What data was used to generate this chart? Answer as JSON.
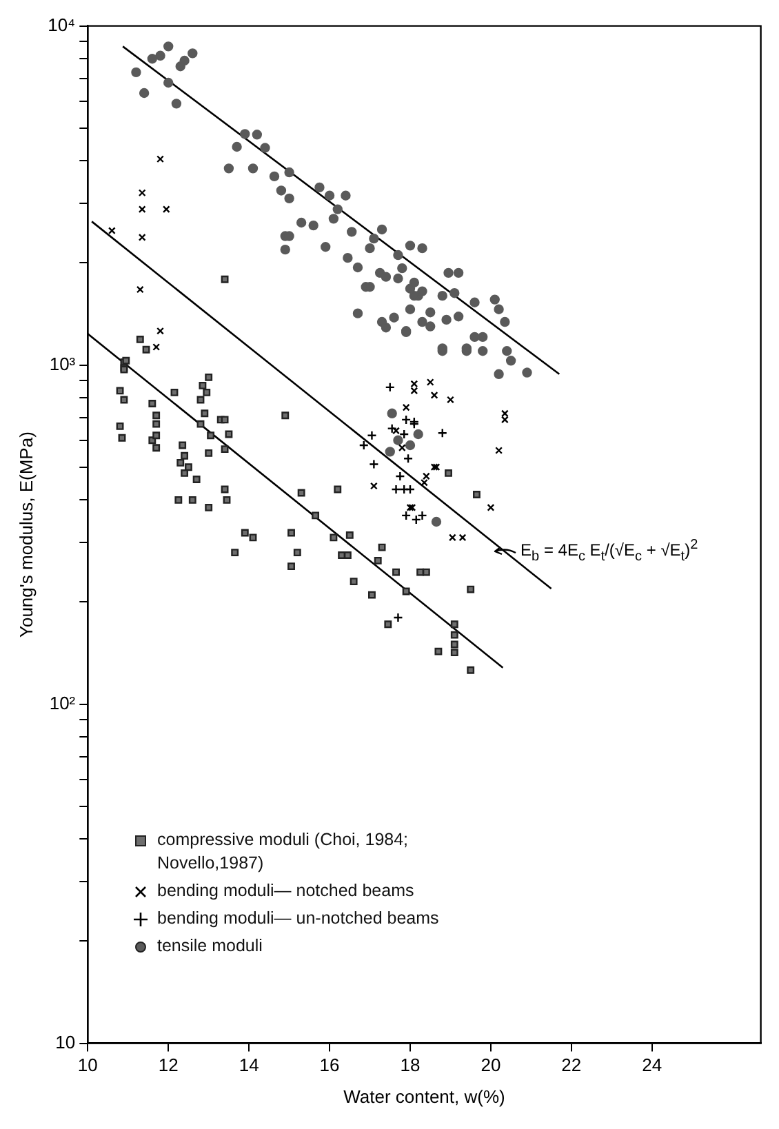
{
  "chart_data": {
    "type": "scatter",
    "xlabel": "Water content, w(%)",
    "ylabel": "Young's modulus, E(MPa)",
    "log": "y",
    "grid": false,
    "legend": "bottom left",
    "xlim": [
      10,
      26.7
    ],
    "xticks": [
      10,
      12,
      14,
      16,
      18,
      20,
      22,
      24
    ],
    "ylim": [
      10,
      10000
    ],
    "yticks": [
      {
        "value": 10,
        "label": "10"
      },
      {
        "value": 20,
        "label": null
      },
      {
        "value": 30,
        "label": null
      },
      {
        "value": 40,
        "label": null
      },
      {
        "value": 50,
        "label": null
      },
      {
        "value": 60,
        "label": null
      },
      {
        "value": 70,
        "label": null
      },
      {
        "value": 80,
        "label": null
      },
      {
        "value": 90,
        "label": null
      },
      {
        "value": 100,
        "label": "10²"
      },
      {
        "value": 200,
        "label": null
      },
      {
        "value": 300,
        "label": null
      },
      {
        "value": 400,
        "label": null
      },
      {
        "value": 500,
        "label": null
      },
      {
        "value": 600,
        "label": null
      },
      {
        "value": 700,
        "label": null
      },
      {
        "value": 800,
        "label": null
      },
      {
        "value": 900,
        "label": null
      },
      {
        "value": 1000,
        "label": "10³"
      },
      {
        "value": 2000,
        "label": null
      },
      {
        "value": 3000,
        "label": null
      },
      {
        "value": 4000,
        "label": null
      },
      {
        "value": 5000,
        "label": null
      },
      {
        "value": 6000,
        "label": null
      },
      {
        "value": 7000,
        "label": null
      },
      {
        "value": 8000,
        "label": null
      },
      {
        "value": 9000,
        "label": null
      },
      {
        "value": 10000,
        "label": "10⁴"
      }
    ],
    "annotations": [
      "E$_{b}$ = 4E$_{c}$ E$_{t}$/(√E$_{c}$ + √E$_{t}$)$^{2}$"
    ],
    "series": [
      {
        "name": "compressive moduli (Choi, 1984; Novello,1987)",
        "type": "scatter",
        "marker": "square",
        "color": "#6e6e6e",
        "x": [
          13.4,
          11.3,
          11.45,
          10.9,
          10.9,
          10.95,
          10.9,
          10.8,
          10.9,
          10.8,
          10.85,
          11.6,
          11.7,
          11.7,
          11.6,
          11.7,
          11.7,
          12.15,
          12.85,
          13.0,
          12.95,
          12.8,
          12.9,
          12.8,
          12.35,
          12.4,
          12.3,
          12.5,
          12.4,
          12.7,
          13.05,
          13.0,
          13.3,
          13.4,
          13.5,
          13.4,
          13.4,
          13.45,
          12.25,
          12.6,
          13.0,
          13.9,
          14.1,
          13.65,
          14.9,
          15.3,
          16.2,
          15.65,
          15.05,
          15.2,
          15.05,
          16.1,
          16.5,
          16.3,
          16.45,
          16.6,
          17.05,
          17.3,
          17.2,
          17.65,
          18.25,
          18.4,
          17.9,
          17.45,
          18.7,
          19.1,
          19.1,
          19.1,
          19.1,
          19.5,
          19.5,
          18.95,
          19.65
        ],
        "values": [
          1790,
          1190,
          1110,
          1020,
          980,
          1030,
          970,
          840,
          790,
          660,
          610,
          770,
          710,
          670,
          600,
          620,
          570,
          830,
          870,
          920,
          830,
          790,
          720,
          670,
          580,
          540,
          515,
          500,
          480,
          460,
          620,
          550,
          690,
          690,
          625,
          565,
          430,
          400,
          400,
          400,
          380,
          320,
          310,
          280,
          710,
          420,
          430,
          360,
          320,
          280,
          255,
          310,
          315,
          275,
          275,
          230,
          210,
          290,
          265,
          245,
          245,
          245,
          215,
          172,
          143,
          172,
          160,
          150,
          142,
          218,
          126,
          480,
          415
        ]
      },
      {
        "name": "bending moduli— notched beams",
        "type": "scatter",
        "marker": "x",
        "color": "#000000",
        "x": [
          11.8,
          11.35,
          11.35,
          11.95,
          10.6,
          11.35,
          11.3,
          11.8,
          11.7,
          18.1,
          18.1,
          18.5,
          18.6,
          19.0,
          17.9,
          17.65,
          17.8,
          17.1,
          18.05,
          18.4,
          18.35,
          18.6,
          19.05,
          19.3,
          20.35,
          20.35,
          20.2,
          20.0,
          18.65,
          18.0
        ],
        "values": [
          4050,
          3220,
          2880,
          2880,
          2490,
          2380,
          1670,
          1260,
          1130,
          880,
          840,
          890,
          815,
          790,
          750,
          640,
          570,
          440,
          380,
          470,
          450,
          500,
          310,
          310,
          720,
          690,
          560,
          380,
          500,
          380
        ]
      },
      {
        "name": "bending moduli— un-notched beams",
        "type": "scatter",
        "marker": "cross",
        "color": "#000000",
        "x": [
          17.5,
          17.05,
          16.85,
          17.1,
          17.55,
          17.85,
          18.1,
          18.8,
          17.95,
          17.75,
          17.65,
          17.85,
          18.0,
          17.9,
          18.15,
          18.3,
          17.7,
          18.1,
          17.9
        ],
        "values": [
          860,
          620,
          580,
          510,
          650,
          625,
          670,
          630,
          530,
          470,
          430,
          430,
          430,
          360,
          350,
          360,
          180,
          680,
          690
        ]
      },
      {
        "name": "tensile moduli",
        "type": "scatter",
        "marker": "circle",
        "color": "#5a5a5a",
        "x": [
          11.8,
          12.2,
          11.2,
          12.3,
          11.4,
          11.6,
          12.0,
          12.4,
          12.6,
          12.0,
          13.5,
          13.9,
          14.2,
          14.4,
          13.7,
          14.1,
          14.63,
          15.0,
          14.8,
          15.0,
          15.75,
          16.0,
          16.1,
          16.2,
          16.4,
          15.3,
          15.6,
          14.9,
          15.0,
          14.9,
          15.9,
          16.55,
          16.45,
          16.7,
          17.0,
          17.3,
          17.1,
          16.9,
          17.0,
          16.7,
          17.25,
          17.4,
          17.7,
          18.0,
          18.3,
          17.9,
          17.3,
          17.6,
          18.0,
          18.3,
          17.4,
          17.8,
          18.1,
          18.2,
          17.7,
          18.0,
          18.3,
          18.1,
          18.5,
          17.9,
          18.5,
          18.95,
          19.2,
          18.8,
          19.1,
          18.9,
          19.2,
          19.6,
          19.6,
          19.8,
          18.8,
          19.4,
          19.8,
          20.1,
          20.2,
          20.35,
          20.4,
          20.5,
          20.2,
          20.9,
          18.8,
          19.4,
          17.55,
          18.2,
          17.7,
          18.0,
          17.5,
          18.65
        ],
        "values": [
          8170,
          5900,
          7300,
          7600,
          6340,
          8000,
          6800,
          7900,
          8300,
          8700,
          3800,
          4800,
          4780,
          4370,
          4400,
          3800,
          3600,
          3700,
          3270,
          3100,
          3340,
          3160,
          2700,
          2880,
          3160,
          2630,
          2580,
          2400,
          2400,
          2190,
          2230,
          2470,
          2070,
          1940,
          2210,
          2510,
          2360,
          1700,
          1700,
          1420,
          1870,
          1820,
          2110,
          2250,
          2210,
          1260,
          1340,
          1380,
          1460,
          1340,
          1290,
          1930,
          1750,
          1600,
          1800,
          1680,
          1650,
          1600,
          1430,
          1250,
          1300,
          1870,
          1870,
          1600,
          1630,
          1360,
          1390,
          1530,
          1210,
          1210,
          1100,
          1100,
          1100,
          1560,
          1460,
          1340,
          1100,
          1030,
          940,
          950,
          1120,
          1120,
          720,
          625,
          600,
          580,
          555,
          345
        ]
      },
      {
        "type": "line",
        "marker": "none",
        "line_style": "solid",
        "color": "#000000",
        "x": [
          10.87,
          21.7
        ],
        "values": [
          8700,
          940
        ]
      },
      {
        "type": "line",
        "marker": "none",
        "line_style": "solid",
        "color": "#000000",
        "x": [
          10.1,
          21.5
        ],
        "values": [
          2650,
          219
        ]
      },
      {
        "type": "line",
        "marker": "none",
        "line_style": "solid",
        "color": "#000000",
        "x": [
          10.0,
          20.3
        ],
        "values": [
          1236,
          128
        ]
      }
    ]
  }
}
